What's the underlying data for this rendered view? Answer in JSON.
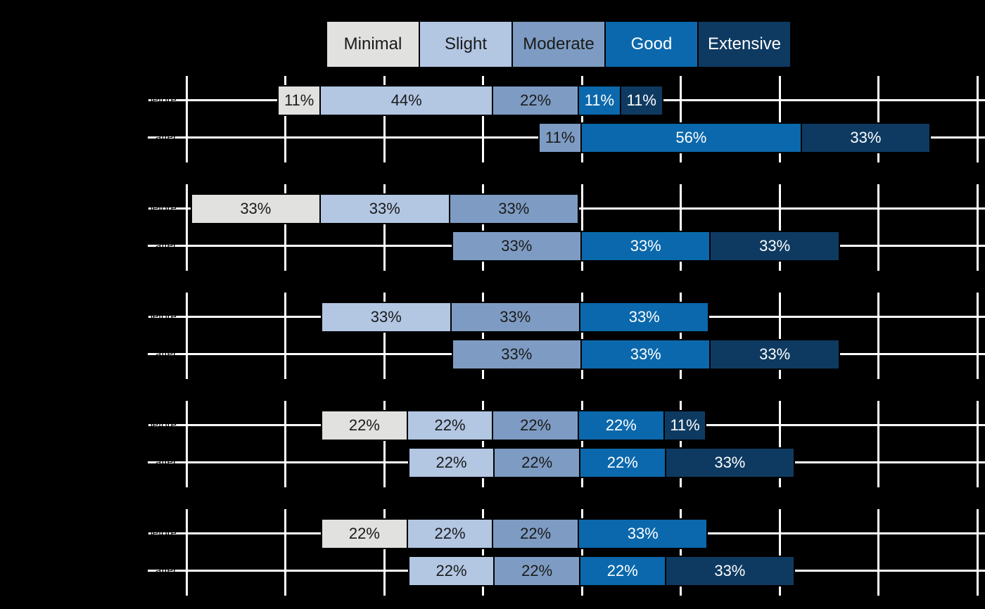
{
  "chart_data": {
    "type": "bar",
    "subtype": "diverging-stacked-likert",
    "unit": "%",
    "axis": {
      "orientation": "horizontal",
      "range_pct": [
        -100,
        100
      ],
      "tick_step_pct": 25,
      "center_rule": "boundary between Moderate and Good at 0",
      "grid": true
    },
    "legend": {
      "position": "top",
      "items": [
        {
          "label": "Minimal",
          "fill": "#e1e1df",
          "text": "#1a1a1a"
        },
        {
          "label": "Slight",
          "fill": "#b3c7e3",
          "text": "#1a1a1a"
        },
        {
          "label": "Moderate",
          "fill": "#7e9cc3",
          "text": "#1a1a1a"
        },
        {
          "label": "Good",
          "fill": "#0b68ac",
          "text": "#ffffff"
        },
        {
          "label": "Extensive",
          "fill": "#0e3a61",
          "text": "#ffffff"
        }
      ]
    },
    "style": {
      "background": "#000000",
      "grid_color": "#ffffff",
      "bar_border": "#000000",
      "row_label_color": "#000000"
    },
    "bar_label_format": "{pct}%",
    "groups": [
      {
        "rows": [
          {
            "label": "before",
            "segments": [
              [
                "Minimal",
                11
              ],
              [
                "Slight",
                44
              ],
              [
                "Moderate",
                22
              ],
              [
                "Good",
                11
              ],
              [
                "Extensive",
                11
              ]
            ]
          },
          {
            "label": "after",
            "segments": [
              [
                "Moderate",
                11
              ],
              [
                "Good",
                56
              ],
              [
                "Extensive",
                33
              ]
            ]
          }
        ]
      },
      {
        "rows": [
          {
            "label": "before",
            "segments": [
              [
                "Minimal",
                33
              ],
              [
                "Slight",
                33
              ],
              [
                "Moderate",
                33
              ]
            ]
          },
          {
            "label": "after",
            "segments": [
              [
                "Moderate",
                33
              ],
              [
                "Good",
                33
              ],
              [
                "Extensive",
                33
              ]
            ]
          }
        ]
      },
      {
        "rows": [
          {
            "label": "before",
            "segments": [
              [
                "Slight",
                33
              ],
              [
                "Moderate",
                33
              ],
              [
                "Good",
                33
              ]
            ]
          },
          {
            "label": "after",
            "segments": [
              [
                "Moderate",
                33
              ],
              [
                "Good",
                33
              ],
              [
                "Extensive",
                33
              ]
            ]
          }
        ]
      },
      {
        "rows": [
          {
            "label": "before",
            "segments": [
              [
                "Minimal",
                22
              ],
              [
                "Slight",
                22
              ],
              [
                "Moderate",
                22
              ],
              [
                "Good",
                22
              ],
              [
                "Extensive",
                11
              ]
            ]
          },
          {
            "label": "after",
            "segments": [
              [
                "Slight",
                22
              ],
              [
                "Moderate",
                22
              ],
              [
                "Good",
                22
              ],
              [
                "Extensive",
                33
              ]
            ]
          }
        ]
      },
      {
        "rows": [
          {
            "label": "before",
            "segments": [
              [
                "Minimal",
                22
              ],
              [
                "Slight",
                22
              ],
              [
                "Moderate",
                22
              ],
              [
                "Good",
                33
              ]
            ]
          },
          {
            "label": "after",
            "segments": [
              [
                "Slight",
                22
              ],
              [
                "Moderate",
                22
              ],
              [
                "Good",
                22
              ],
              [
                "Extensive",
                33
              ]
            ]
          }
        ]
      }
    ]
  }
}
